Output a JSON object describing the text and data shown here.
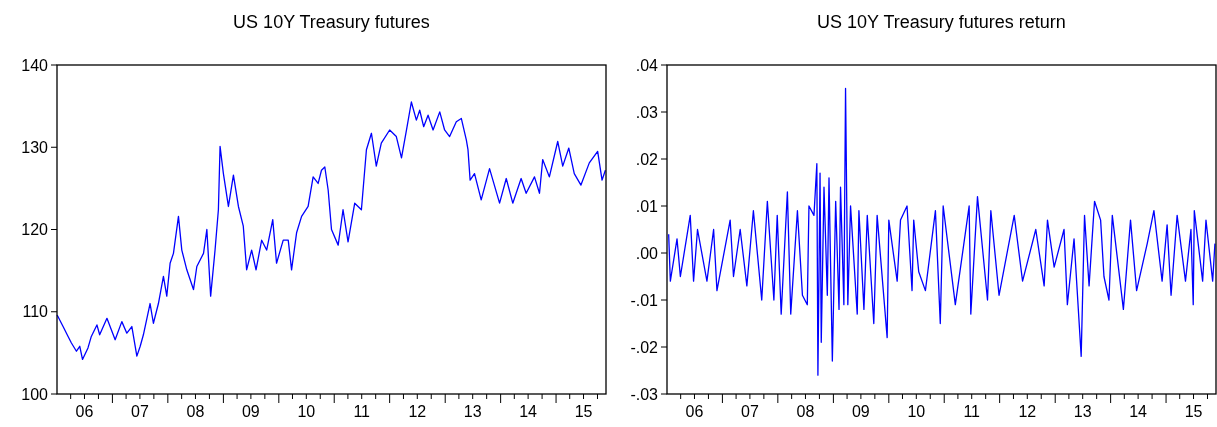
{
  "chart_data": [
    {
      "type": "line",
      "title": "US 10Y Treasury futures",
      "xlim": [
        "2006-01-01",
        "2015-11-26"
      ],
      "ylim": [
        100,
        140
      ],
      "yticks": [
        100,
        110,
        120,
        130,
        140
      ],
      "xticks": [
        {
          "value": "2006-04-01",
          "label": null
        },
        {
          "value": "2006-07-01",
          "label": "06"
        },
        {
          "value": "2006-10-01",
          "label": null
        },
        {
          "value": "2007-01-01",
          "label": null
        },
        {
          "value": "2007-04-01",
          "label": null
        },
        {
          "value": "2007-07-01",
          "label": "07"
        },
        {
          "value": "2007-10-01",
          "label": null
        },
        {
          "value": "2008-01-01",
          "label": null
        },
        {
          "value": "2008-04-01",
          "label": null
        },
        {
          "value": "2008-07-01",
          "label": "08"
        },
        {
          "value": "2008-10-01",
          "label": null
        },
        {
          "value": "2009-01-01",
          "label": null
        },
        {
          "value": "2009-04-01",
          "label": null
        },
        {
          "value": "2009-07-01",
          "label": "09"
        },
        {
          "value": "2009-10-01",
          "label": null
        },
        {
          "value": "2010-01-01",
          "label": null
        },
        {
          "value": "2010-04-01",
          "label": null
        },
        {
          "value": "2010-07-01",
          "label": "10"
        },
        {
          "value": "2010-10-01",
          "label": null
        },
        {
          "value": "2011-01-01",
          "label": null
        },
        {
          "value": "2011-04-01",
          "label": null
        },
        {
          "value": "2011-07-01",
          "label": "11"
        },
        {
          "value": "2011-10-01",
          "label": null
        },
        {
          "value": "2012-01-01",
          "label": null
        },
        {
          "value": "2012-04-01",
          "label": null
        },
        {
          "value": "2012-07-01",
          "label": "12"
        },
        {
          "value": "2012-10-01",
          "label": null
        },
        {
          "value": "2013-01-01",
          "label": null
        },
        {
          "value": "2013-04-01",
          "label": null
        },
        {
          "value": "2013-07-01",
          "label": "13"
        },
        {
          "value": "2013-10-01",
          "label": null
        },
        {
          "value": "2014-01-01",
          "label": null
        },
        {
          "value": "2014-04-01",
          "label": null
        },
        {
          "value": "2014-07-01",
          "label": "14"
        },
        {
          "value": "2014-10-01",
          "label": null
        },
        {
          "value": "2015-01-01",
          "label": null
        },
        {
          "value": "2015-04-01",
          "label": null
        },
        {
          "value": "2015-07-01",
          "label": "15"
        },
        {
          "value": "2015-10-01",
          "label": null
        }
      ],
      "series": [
        {
          "color": "#0000ff",
          "x": [
            "2006-01-01",
            "2006-01-08",
            "2006-02-10",
            "2006-03-15",
            "2006-04-06",
            "2006-05-09",
            "2006-05-31",
            "2006-06-18",
            "2006-07-24",
            "2006-08-15",
            "2006-09-21",
            "2006-10-09",
            "2006-11-26",
            "2007-01-19",
            "2007-03-04",
            "2007-04-06",
            "2007-05-09",
            "2007-06-11",
            "2007-07-03",
            "2007-07-24",
            "2007-09-06",
            "2007-09-28",
            "2007-10-31",
            "2007-12-03",
            "2007-12-25",
            "2008-01-16",
            "2008-02-07",
            "2008-03-11",
            "2008-04-02",
            "2008-05-05",
            "2008-06-18",
            "2008-07-10",
            "2008-08-23",
            "2008-09-14",
            "2008-10-09",
            "2008-11-07",
            "2008-11-29",
            "2008-12-10",
            "2009-01-01",
            "2009-02-03",
            "2009-03-08",
            "2009-04-10",
            "2009-05-12",
            "2009-06-03",
            "2009-07-06",
            "2009-08-04",
            "2009-09-10",
            "2009-10-13",
            "2009-11-22",
            "2009-12-17",
            "2010-01-30",
            "2010-03-04",
            "2010-03-26",
            "2010-04-28",
            "2010-05-31",
            "2010-07-13",
            "2010-08-15",
            "2010-09-17",
            "2010-10-09",
            "2010-10-31",
            "2010-11-22",
            "2010-12-14",
            "2011-01-27",
            "2011-02-28",
            "2011-04-02",
            "2011-05-16",
            "2011-06-29",
            "2011-08-01",
            "2011-09-03",
            "2011-10-05",
            "2011-11-07",
            "2012-01-01",
            "2012-02-14",
            "2012-03-19",
            "2012-04-21",
            "2012-05-23",
            "2012-06-25",
            "2012-07-17",
            "2012-08-12",
            "2012-09-10",
            "2012-10-13",
            "2012-11-26",
            "2012-12-28",
            "2013-01-30",
            "2013-03-15",
            "2013-04-17",
            "2013-05-20",
            "2013-05-31",
            "2013-06-14",
            "2013-07-13",
            "2013-08-26",
            "2013-10-20",
            "2013-11-11",
            "2013-12-25",
            "2014-02-07",
            "2014-03-22",
            "2014-05-16",
            "2014-06-18",
            "2014-08-12",
            "2014-09-14",
            "2014-10-05",
            "2014-11-18",
            "2015-01-12",
            "2015-02-14",
            "2015-03-26",
            "2015-05-01",
            "2015-06-14",
            "2015-08-08",
            "2015-10-02",
            "2015-10-31",
            "2015-11-22"
          ],
          "values": [
            109.6,
            109.4,
            108.2,
            107.0,
            106.2,
            105.2,
            105.8,
            104.2,
            105.6,
            107.0,
            108.4,
            107.2,
            109.2,
            106.6,
            108.8,
            107.4,
            108.2,
            104.6,
            105.8,
            107.2,
            111.0,
            108.6,
            111.0,
            114.3,
            111.9,
            115.9,
            117.1,
            121.6,
            117.5,
            115.1,
            112.7,
            115.5,
            117.1,
            120.0,
            111.9,
            117.5,
            122.4,
            130.1,
            126.8,
            122.8,
            126.6,
            122.8,
            120.4,
            115.1,
            117.5,
            115.1,
            118.7,
            117.5,
            121.2,
            115.9,
            118.7,
            118.7,
            115.1,
            119.6,
            121.6,
            122.8,
            126.4,
            125.6,
            127.2,
            127.6,
            124.8,
            120.0,
            118.1,
            122.4,
            118.5,
            123.2,
            122.4,
            129.7,
            131.7,
            127.7,
            130.5,
            132.1,
            131.3,
            128.7,
            132.1,
            135.5,
            133.3,
            134.5,
            132.5,
            133.9,
            132.1,
            134.3,
            132.1,
            131.3,
            133.1,
            133.5,
            130.9,
            129.7,
            126.0,
            126.8,
            123.6,
            127.4,
            126.0,
            123.2,
            126.2,
            123.2,
            126.2,
            124.4,
            126.4,
            124.4,
            128.5,
            126.4,
            130.7,
            127.7,
            129.9,
            126.8,
            125.4,
            128.1,
            129.5,
            126.0,
            127.2
          ]
        }
      ]
    },
    {
      "type": "line",
      "title": "US 10Y Treasury futures return",
      "xlim": [
        "2006-01-01",
        "2015-11-26"
      ],
      "ylim": [
        -0.03,
        0.04
      ],
      "yticks": [
        {
          "value": -0.03,
          "label": "-.03"
        },
        {
          "value": -0.02,
          "label": "-.02"
        },
        {
          "value": -0.01,
          "label": "-.01"
        },
        {
          "value": 0,
          "label": ".00"
        },
        {
          "value": 0.01,
          "label": ".01"
        },
        {
          "value": 0.02,
          "label": ".02"
        },
        {
          "value": 0.03,
          "label": ".03"
        },
        {
          "value": 0.04,
          "label": ".04"
        }
      ],
      "xticks": [
        {
          "value": "2006-04-01",
          "label": null
        },
        {
          "value": "2006-07-01",
          "label": "06"
        },
        {
          "value": "2006-10-01",
          "label": null
        },
        {
          "value": "2007-01-01",
          "label": null
        },
        {
          "value": "2007-04-01",
          "label": null
        },
        {
          "value": "2007-07-01",
          "label": "07"
        },
        {
          "value": "2007-10-01",
          "label": null
        },
        {
          "value": "2008-01-01",
          "label": null
        },
        {
          "value": "2008-04-01",
          "label": null
        },
        {
          "value": "2008-07-01",
          "label": "08"
        },
        {
          "value": "2008-10-01",
          "label": null
        },
        {
          "value": "2009-01-01",
          "label": null
        },
        {
          "value": "2009-04-01",
          "label": null
        },
        {
          "value": "2009-07-01",
          "label": "09"
        },
        {
          "value": "2009-10-01",
          "label": null
        },
        {
          "value": "2010-01-01",
          "label": null
        },
        {
          "value": "2010-04-01",
          "label": null
        },
        {
          "value": "2010-07-01",
          "label": "10"
        },
        {
          "value": "2010-10-01",
          "label": null
        },
        {
          "value": "2011-01-01",
          "label": null
        },
        {
          "value": "2011-04-01",
          "label": null
        },
        {
          "value": "2011-07-01",
          "label": "11"
        },
        {
          "value": "2011-10-01",
          "label": null
        },
        {
          "value": "2012-01-01",
          "label": null
        },
        {
          "value": "2012-04-01",
          "label": null
        },
        {
          "value": "2012-07-01",
          "label": "12"
        },
        {
          "value": "2012-10-01",
          "label": null
        },
        {
          "value": "2013-01-01",
          "label": null
        },
        {
          "value": "2013-04-01",
          "label": null
        },
        {
          "value": "2013-07-01",
          "label": "13"
        },
        {
          "value": "2013-10-01",
          "label": null
        },
        {
          "value": "2014-01-01",
          "label": null
        },
        {
          "value": "2014-04-01",
          "label": null
        },
        {
          "value": "2014-07-01",
          "label": "14"
        },
        {
          "value": "2014-10-01",
          "label": null
        },
        {
          "value": "2015-01-01",
          "label": null
        },
        {
          "value": "2015-04-01",
          "label": null
        },
        {
          "value": "2015-07-01",
          "label": "15"
        },
        {
          "value": "2015-10-01",
          "label": null
        }
      ],
      "series": [
        {
          "color": "#0000ff",
          "x": [
            "2006-01-12",
            "2006-01-23",
            "2006-03-08",
            "2006-03-30",
            "2006-06-03",
            "2006-06-25",
            "2006-07-21",
            "2006-09-21",
            "2006-11-04",
            "2006-11-26",
            "2007-02-21",
            "2007-03-15",
            "2007-04-28",
            "2007-06-11",
            "2007-07-24",
            "2007-09-17",
            "2007-10-24",
            "2007-12-06",
            "2007-12-28",
            "2008-01-23",
            "2008-03-04",
            "2008-03-26",
            "2008-05-09",
            "2008-06-11",
            "2008-07-13",
            "2008-07-24",
            "2008-08-26",
            "2008-09-14",
            "2008-09-21",
            "2008-10-05",
            "2008-10-13",
            "2008-10-31",
            "2008-11-22",
            "2008-12-03",
            "2008-12-25",
            "2009-01-16",
            "2009-02-07",
            "2009-02-17",
            "2009-03-11",
            "2009-03-22",
            "2009-04-06",
            "2009-04-24",
            "2009-06-07",
            "2009-06-18",
            "2009-07-21",
            "2009-08-12",
            "2009-09-24",
            "2009-10-16",
            "2009-12-21",
            "2010-01-01",
            "2010-02-25",
            "2010-03-19",
            "2010-05-01",
            "2010-06-03",
            "2010-06-14",
            "2010-07-17",
            "2010-08-30",
            "2010-11-04",
            "2010-12-06",
            "2010-12-25",
            "2011-03-15",
            "2011-06-14",
            "2011-06-25",
            "2011-08-08",
            "2011-10-13",
            "2011-11-04",
            "2011-12-28",
            "2012-04-06",
            "2012-05-31",
            "2012-08-26",
            "2012-10-20",
            "2012-11-11",
            "2012-12-25",
            "2013-02-28",
            "2013-03-22",
            "2013-05-05",
            "2013-06-21",
            "2013-07-13",
            "2013-08-12",
            "2013-09-17",
            "2013-10-27",
            "2013-11-18",
            "2013-12-21",
            "2014-01-12",
            "2014-03-26",
            "2014-05-12",
            "2014-06-21",
            "2014-08-30",
            "2014-10-13",
            "2014-12-06",
            "2015-01-08",
            "2015-02-03",
            "2015-03-15",
            "2015-05-09",
            "2015-06-14",
            "2015-06-29",
            "2015-07-06",
            "2015-08-30",
            "2015-09-21",
            "2015-11-04",
            "2015-11-19"
          ],
          "values": [
            0.004,
            -0.006,
            0.003,
            -0.005,
            0.008,
            -0.006,
            0.005,
            -0.006,
            0.005,
            -0.008,
            0.007,
            -0.005,
            0.005,
            -0.007,
            0.009,
            -0.01,
            0.011,
            -0.01,
            0.008,
            -0.013,
            0.013,
            -0.013,
            0.009,
            -0.009,
            -0.011,
            0.01,
            0.008,
            0.019,
            -0.026,
            0.017,
            -0.019,
            0.014,
            -0.009,
            0.016,
            -0.023,
            0.011,
            -0.012,
            0.014,
            -0.011,
            0.035,
            -0.011,
            0.01,
            -0.013,
            0.009,
            -0.012,
            0.008,
            -0.015,
            0.008,
            -0.018,
            0.007,
            -0.006,
            0.007,
            0.01,
            -0.008,
            0.007,
            -0.004,
            -0.008,
            0.009,
            -0.015,
            0.01,
            -0.011,
            0.01,
            -0.013,
            0.012,
            -0.01,
            0.009,
            -0.009,
            0.008,
            -0.006,
            0.005,
            -0.007,
            0.007,
            -0.003,
            0.005,
            -0.011,
            0.003,
            -0.022,
            0.008,
            -0.007,
            0.011,
            0.007,
            -0.005,
            -0.01,
            0.008,
            -0.012,
            0.007,
            -0.008,
            0.002,
            0.009,
            -0.006,
            0.006,
            -0.009,
            0.008,
            -0.006,
            0.005,
            -0.011,
            0.009,
            -0.006,
            0.007,
            -0.006,
            0.002
          ]
        }
      ]
    }
  ]
}
